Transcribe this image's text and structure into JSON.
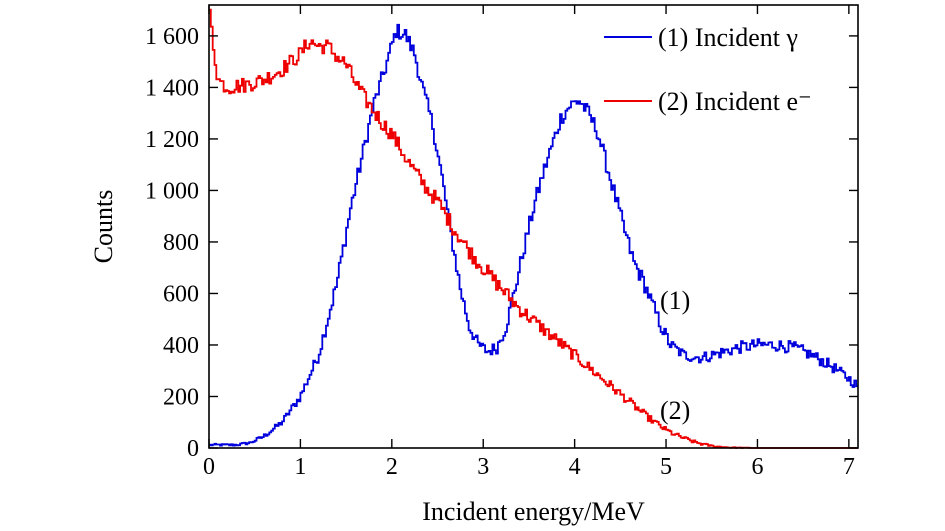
{
  "chart_data": {
    "type": "line",
    "step": true,
    "xlabel": "Incident energy/MeV",
    "ylabel": "Counts",
    "xlim": [
      0,
      7.1
    ],
    "ylim": [
      0,
      1720
    ],
    "xticks": [
      0,
      1,
      2,
      3,
      4,
      5,
      6,
      7
    ],
    "xtick_labels": [
      "0",
      "1",
      "2",
      "3",
      "4",
      "5",
      "6",
      "7"
    ],
    "yticks": [
      0,
      200,
      400,
      600,
      800,
      1000,
      1200,
      1400,
      1600
    ],
    "ytick_labels": [
      "0",
      "200",
      "400",
      "600",
      "800",
      "1 000",
      "1 200",
      "1 400",
      "1 600"
    ],
    "grid": false,
    "legend_position": "top-right",
    "series": [
      {
        "name": "(1) Incident γ",
        "color": "#0000dd",
        "annotation": "(1)",
        "x": [
          0.0,
          0.3,
          0.45,
          0.6,
          0.8,
          1.0,
          1.2,
          1.4,
          1.55,
          1.7,
          1.8,
          1.9,
          2.0,
          2.05,
          2.15,
          2.25,
          2.35,
          2.45,
          2.55,
          2.65,
          2.75,
          2.85,
          2.95,
          3.05,
          3.15,
          3.25,
          3.35,
          3.45,
          3.55,
          3.65,
          3.75,
          3.85,
          3.95,
          4.05,
          4.15,
          4.25,
          4.35,
          4.45,
          4.55,
          4.65,
          4.75,
          4.85,
          4.95,
          5.05,
          5.2,
          5.4,
          5.6,
          5.8,
          6.0,
          6.2,
          6.4,
          6.6,
          6.8,
          7.0,
          7.1
        ],
        "y": [
          12,
          12,
          20,
          45,
          100,
          200,
          360,
          640,
          930,
          1170,
          1330,
          1440,
          1560,
          1620,
          1605,
          1530,
          1380,
          1250,
          1050,
          830,
          620,
          470,
          400,
          375,
          390,
          470,
          620,
          780,
          930,
          1060,
          1170,
          1280,
          1330,
          1350,
          1300,
          1230,
          1100,
          970,
          840,
          720,
          650,
          560,
          470,
          400,
          360,
          350,
          370,
          390,
          400,
          400,
          390,
          360,
          320,
          270,
          240
        ]
      },
      {
        "name": "(2) Incident e⁻",
        "color": "#ee0000",
        "annotation": "(2)",
        "x": [
          0.0,
          0.02,
          0.05,
          0.1,
          0.2,
          0.4,
          0.6,
          0.8,
          1.0,
          1.1,
          1.2,
          1.3,
          1.4,
          1.5,
          1.6,
          1.7,
          1.8,
          1.9,
          2.0,
          2.1,
          2.2,
          2.3,
          2.4,
          2.5,
          2.6,
          2.7,
          2.8,
          2.9,
          3.0,
          3.1,
          3.2,
          3.3,
          3.4,
          3.5,
          3.6,
          3.7,
          3.8,
          3.9,
          4.0,
          4.1,
          4.2,
          4.3,
          4.4,
          4.5,
          4.6,
          4.7,
          4.8,
          4.9,
          5.0,
          5.1,
          5.2,
          5.3,
          5.4,
          5.5,
          5.6,
          5.7,
          5.8,
          6.0,
          6.5,
          7.0,
          7.1
        ],
        "y": [
          1700,
          1660,
          1560,
          1430,
          1400,
          1410,
          1430,
          1470,
          1530,
          1580,
          1560,
          1560,
          1520,
          1490,
          1420,
          1360,
          1310,
          1260,
          1220,
          1160,
          1100,
          1050,
          1000,
          960,
          900,
          840,
          790,
          740,
          700,
          660,
          620,
          580,
          540,
          510,
          480,
          450,
          420,
          390,
          360,
          330,
          300,
          270,
          240,
          210,
          180,
          150,
          120,
          95,
          70,
          52,
          38,
          25,
          15,
          8,
          4,
          2,
          1,
          0,
          0,
          0,
          0
        ]
      }
    ]
  }
}
